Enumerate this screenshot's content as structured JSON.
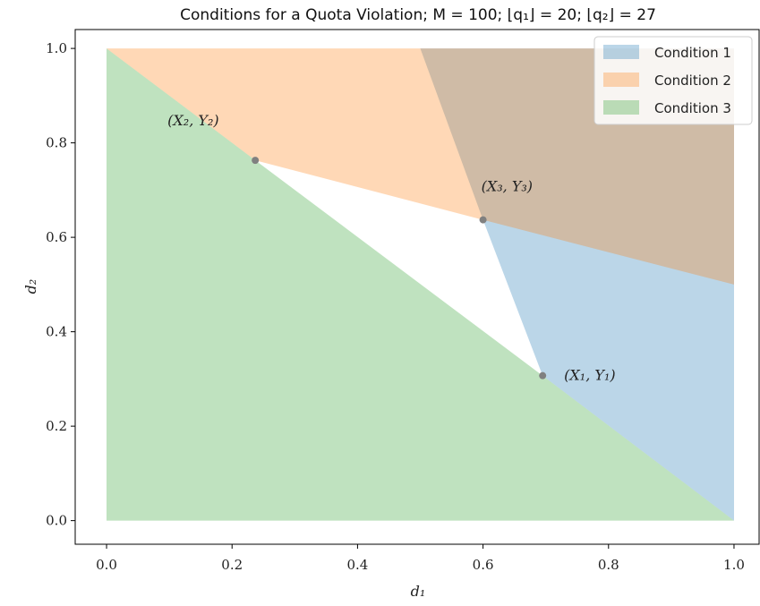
{
  "chart_data": {
    "type": "area",
    "title": "Conditions for a Quota Violation; M = 100; ⌊q₁⌋ = 20; ⌊q₂⌋ = 27",
    "xlabel": "d₁",
    "ylabel": "d₂",
    "xlim": [
      -0.05,
      1.04
    ],
    "ylim": [
      -0.05,
      1.04
    ],
    "xticks": [
      0.0,
      0.2,
      0.4,
      0.6,
      0.8,
      1.0
    ],
    "yticks": [
      0.0,
      0.2,
      0.4,
      0.6,
      0.8,
      1.0
    ],
    "xtick_labels": [
      "0.0",
      "0.2",
      "0.4",
      "0.6",
      "0.8",
      "1.0"
    ],
    "ytick_labels": [
      "0.0",
      "0.2",
      "0.4",
      "0.6",
      "0.8",
      "1.0"
    ],
    "legend_position": "top-right",
    "grid": false,
    "series": [
      {
        "name": "Condition 1",
        "color": "#1f77b4",
        "opacity": 0.3,
        "polygon": [
          [
            0.5,
            1.0
          ],
          [
            1.0,
            1.0
          ],
          [
            1.0,
            0.0
          ],
          [
            0.695,
            0.307
          ],
          [
            0.6,
            0.637
          ]
        ]
      },
      {
        "name": "Condition 2",
        "color": "#ff7f0e",
        "opacity": 0.3,
        "polygon": [
          [
            0.0,
            1.0
          ],
          [
            1.0,
            1.0
          ],
          [
            1.0,
            0.5
          ],
          [
            0.6,
            0.637
          ],
          [
            0.237,
            0.763
          ]
        ]
      },
      {
        "name": "Condition 3",
        "color": "#2ca02c",
        "opacity": 0.3,
        "polygon": [
          [
            0.0,
            1.0
          ],
          [
            0.237,
            0.763
          ],
          [
            0.695,
            0.307
          ],
          [
            1.0,
            0.0
          ],
          [
            0.0,
            0.0
          ]
        ]
      }
    ],
    "points": [
      {
        "label": "(X₁, Y₁)",
        "x": 0.695,
        "y": 0.307,
        "label_side": "right"
      },
      {
        "label": "(X₂, Y₂)",
        "x": 0.237,
        "y": 0.763,
        "label_side": "above-left"
      },
      {
        "label": "(X₃, Y₃)",
        "x": 0.6,
        "y": 0.637,
        "label_side": "above-right"
      }
    ]
  }
}
